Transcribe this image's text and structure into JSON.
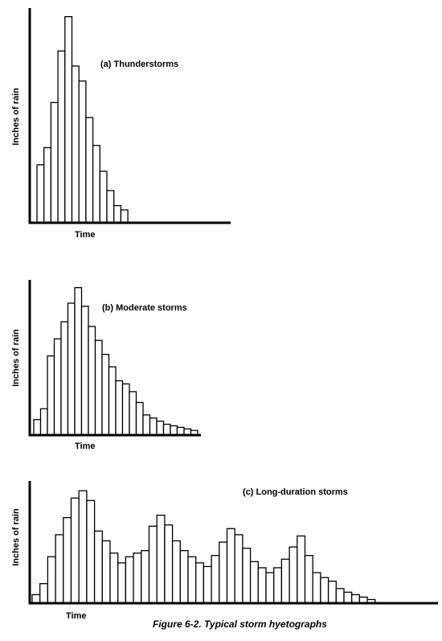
{
  "chart_data": [
    {
      "type": "bar",
      "title": "(a) Thunderstorms",
      "xlabel": "Time",
      "ylabel": "Inches of rain",
      "color": "#ffffff",
      "edgecolor": "#000000",
      "ylim": [
        0,
        100
      ],
      "values": [
        27,
        35,
        56,
        80,
        96,
        73,
        66,
        49,
        36,
        24,
        15,
        8,
        6
      ]
    },
    {
      "type": "bar",
      "title": "(b) Moderate storms",
      "xlabel": "Time",
      "ylabel": "Inches of rain",
      "color": "#ffffff",
      "edgecolor": "#000000",
      "ylim": [
        0,
        100
      ],
      "values": [
        10,
        17,
        51,
        62,
        73,
        85,
        95,
        83,
        70,
        61,
        52,
        44,
        35,
        33,
        28,
        21,
        13,
        11,
        9,
        7,
        6,
        5,
        4,
        3
      ]
    },
    {
      "type": "bar",
      "title": "(c) Long-duration storms",
      "xlabel": "Time",
      "ylabel": "Inches of rain",
      "color": "#ffffff",
      "edgecolor": "#000000",
      "ylim": [
        0,
        100
      ],
      "values": [
        7,
        16,
        38,
        56,
        70,
        86,
        92,
        84,
        59,
        51,
        41,
        33,
        38,
        41,
        43,
        63,
        72,
        64,
        51,
        43,
        38,
        33,
        30,
        39,
        50,
        61,
        56,
        45,
        34,
        29,
        25,
        29,
        36,
        46,
        55,
        39,
        25,
        21,
        18,
        12,
        9,
        7,
        5,
        3
      ]
    }
  ],
  "caption": "Figure 6-2.  Typical storm hyetographs"
}
